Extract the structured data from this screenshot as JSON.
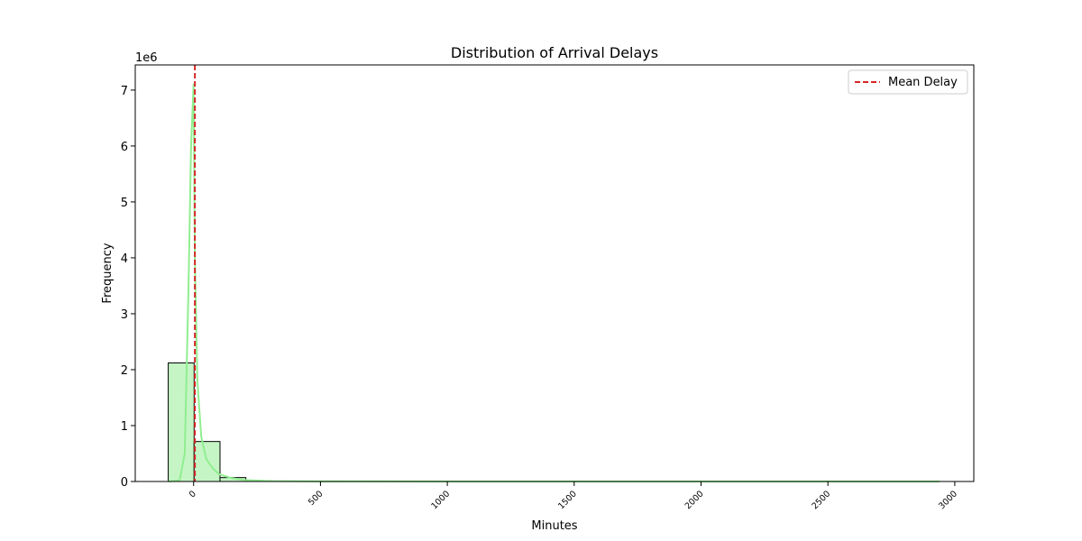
{
  "chart_data": {
    "type": "bar",
    "title": "Distribution of Arrival Delays",
    "xlabel": "Minutes",
    "ylabel": "Frequency",
    "y_offset_text": "1e6",
    "y_scale": 1000000,
    "xlim": [
      -230,
      3075
    ],
    "ylim": [
      0,
      7450000
    ],
    "xticks": [
      0,
      500,
      1000,
      1500,
      2000,
      2500,
      3000
    ],
    "yticks": [
      0,
      1,
      2,
      3,
      4,
      5,
      6,
      7
    ],
    "bins": [
      {
        "x0": -100,
        "x1": 2,
        "value": 2120000
      },
      {
        "x0": 2,
        "x1": 104,
        "value": 715000
      },
      {
        "x0": 104,
        "x1": 206,
        "value": 70000
      },
      {
        "x0": 206,
        "x1": 308,
        "value": 12000
      },
      {
        "x0": 308,
        "x1": 410,
        "value": 4000
      },
      {
        "x0": 410,
        "x1": 512,
        "value": 1500
      },
      {
        "x0": 512,
        "x1": 614,
        "value": 800
      }
    ],
    "kde": [
      [
        -100,
        0
      ],
      [
        -55,
        20000
      ],
      [
        -35,
        500000
      ],
      [
        -20,
        3500000
      ],
      [
        -10,
        6000000
      ],
      [
        0,
        7100000
      ],
      [
        5,
        4000000
      ],
      [
        15,
        1800000
      ],
      [
        30,
        800000
      ],
      [
        50,
        400000
      ],
      [
        75,
        240000
      ],
      [
        100,
        130000
      ],
      [
        150,
        60000
      ],
      [
        200,
        25000
      ],
      [
        300,
        8000
      ],
      [
        500,
        2000
      ],
      [
        1000,
        500
      ],
      [
        2000,
        200
      ],
      [
        2940,
        100
      ]
    ],
    "mean_line": {
      "x": 5,
      "label": "Mean Delay"
    },
    "legend_position": "top-right",
    "grid": false,
    "colors": {
      "bar_fill": "#c5f5c5",
      "bar_edge": "#000000",
      "kde_line": "#90ee90",
      "mean_line": "#d62728"
    }
  }
}
